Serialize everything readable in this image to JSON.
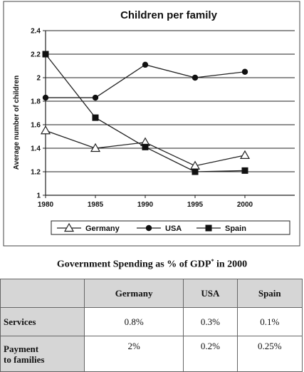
{
  "chart_data": {
    "type": "line",
    "title": "Children per family",
    "xlabel": "",
    "ylabel": "Average number of children",
    "x": [
      1980,
      1985,
      1990,
      1995,
      2000
    ],
    "x_tick_labels": [
      "1980",
      "1985",
      "1990",
      "1995",
      "2000"
    ],
    "xlim": [
      1980,
      2005
    ],
    "ylim": [
      1,
      2.4
    ],
    "y_ticks": [
      1,
      1.2,
      1.4,
      1.6,
      1.8,
      2,
      2.2,
      2.4
    ],
    "y_tick_labels": [
      "1",
      "1.2",
      "1.4",
      "1.6",
      "1.8",
      "2",
      "2.2",
      "2.4"
    ],
    "grid": true,
    "legend_position": "bottom",
    "series": [
      {
        "name": "Germany",
        "marker": "triangle-open",
        "values": [
          1.55,
          1.4,
          1.45,
          1.25,
          1.34
        ]
      },
      {
        "name": "USA",
        "marker": "circle-filled",
        "values": [
          1.83,
          1.83,
          2.11,
          2.0,
          2.05
        ]
      },
      {
        "name": "Spain",
        "marker": "square-filled",
        "values": [
          2.2,
          1.66,
          1.41,
          1.2,
          1.21
        ]
      }
    ]
  },
  "table": {
    "title": "Government Spending as % of GDP",
    "title_marker": "*",
    "title_suffix": " in 2000",
    "headers": [
      "",
      "Germany",
      "USA",
      "Spain"
    ],
    "rows": [
      {
        "label": "Services",
        "values": [
          "0.8%",
          "0.3%",
          "0.1%"
        ]
      },
      {
        "label_line1": "Payment",
        "label_line2": "to families",
        "values": [
          "2%",
          "0.2%",
          "0.25%"
        ]
      }
    ]
  }
}
